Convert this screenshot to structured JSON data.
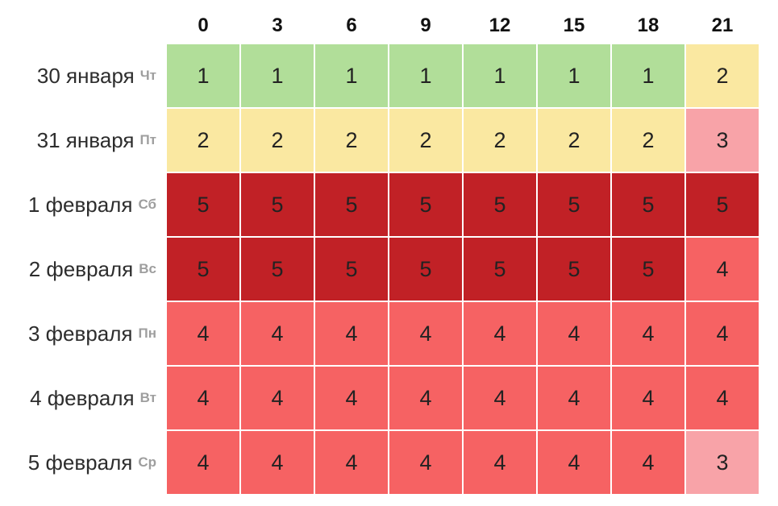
{
  "chart_data": {
    "type": "heatmap",
    "title": "",
    "xlabel": "",
    "ylabel": "",
    "x_ticks": [
      "0",
      "3",
      "6",
      "9",
      "12",
      "15",
      "18",
      "21"
    ],
    "rows": [
      {
        "date": "30 января",
        "day": "Чт",
        "values": [
          1,
          1,
          1,
          1,
          1,
          1,
          1,
          2
        ]
      },
      {
        "date": "31 января",
        "day": "Пт",
        "values": [
          2,
          2,
          2,
          2,
          2,
          2,
          2,
          3
        ]
      },
      {
        "date": "1 февраля",
        "day": "Сб",
        "values": [
          5,
          5,
          5,
          5,
          5,
          5,
          5,
          5
        ]
      },
      {
        "date": "2 февраля",
        "day": "Вс",
        "values": [
          5,
          5,
          5,
          5,
          5,
          5,
          5,
          4
        ]
      },
      {
        "date": "3 февраля",
        "day": "Пн",
        "values": [
          4,
          4,
          4,
          4,
          4,
          4,
          4,
          4
        ]
      },
      {
        "date": "4 февраля",
        "day": "Вт",
        "values": [
          4,
          4,
          4,
          4,
          4,
          4,
          4,
          4
        ]
      },
      {
        "date": "5 февраля",
        "day": "Ср",
        "values": [
          4,
          4,
          4,
          4,
          4,
          4,
          4,
          3
        ]
      }
    ],
    "value_colors": {
      "1": "#b1de99",
      "2": "#fae8a1",
      "3": "#f8a3a8",
      "4": "#f66263",
      "5": "#c12126"
    },
    "text_colors": {
      "header": "#111111",
      "date": "#2d2d2d",
      "day_abbr": "#9e9e9e",
      "cell_value": "#222222"
    },
    "legend": "none",
    "grid_gap_color": "#ffffff"
  }
}
